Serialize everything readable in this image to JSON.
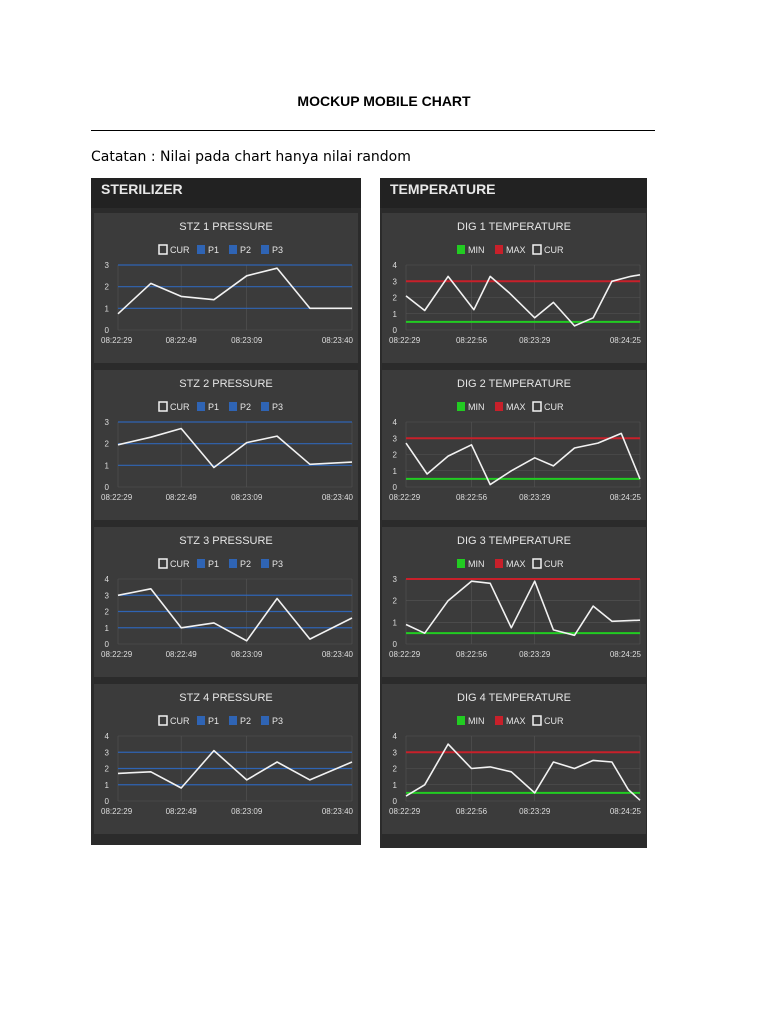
{
  "document": {
    "title": "MOCKUP MOBILE CHART",
    "note": "Catatan : Nilai pada chart hanya nilai random"
  },
  "colors": {
    "panel_bg": "#2b2b2b",
    "panel_header_bg": "#222222",
    "card_bg": "#3b3b3b",
    "cur_line": "#f2f2f2",
    "p_line": "#2f64b4",
    "min_line": "#22cc22",
    "max_line": "#c8202a",
    "grid": "#555555"
  },
  "panels": [
    {
      "title": "STERILIZER",
      "charts": [
        {
          "chart_data": {
            "type": "line",
            "title": "STZ 1 PRESSURE",
            "legend": [
              {
                "label": "CUR",
                "color": "#f2f2f2",
                "shape": "outline"
              },
              {
                "label": "P1",
                "color": "#2f64b4",
                "shape": "fill"
              },
              {
                "label": "P2",
                "color": "#2f64b4",
                "shape": "fill"
              },
              {
                "label": "P3",
                "color": "#2f64b4",
                "shape": "fill"
              }
            ],
            "y_ticks": [
              "0",
              "1",
              "2",
              "3"
            ],
            "ylim": [
              0,
              3
            ],
            "x_ticks": [
              "08:22:29",
              "08:22:49",
              "08:23:09",
              "08:23:40"
            ],
            "x_tick_pos": [
              0,
              0.27,
              0.55,
              1
            ],
            "thresholds": [
              {
                "name": "P1",
                "value": 1,
                "color": "#2f64b4"
              },
              {
                "name": "P2",
                "value": 2,
                "color": "#2f64b4"
              },
              {
                "name": "P3",
                "value": 3,
                "color": "#2f64b4"
              }
            ],
            "series": [
              {
                "name": "CUR",
                "color": "#f2f2f2",
                "x": [
                  0,
                  0.14,
                  0.27,
                  0.41,
                  0.55,
                  0.68,
                  0.82,
                  1
                ],
                "values": [
                  0.75,
                  2.15,
                  1.55,
                  1.4,
                  2.5,
                  2.85,
                  1.0,
                  1.0
                ]
              }
            ]
          }
        },
        {
          "chart_data": {
            "type": "line",
            "title": "STZ 2 PRESSURE",
            "legend": [
              {
                "label": "CUR",
                "color": "#f2f2f2",
                "shape": "outline"
              },
              {
                "label": "P1",
                "color": "#2f64b4",
                "shape": "fill"
              },
              {
                "label": "P2",
                "color": "#2f64b4",
                "shape": "fill"
              },
              {
                "label": "P3",
                "color": "#2f64b4",
                "shape": "fill"
              }
            ],
            "y_ticks": [
              "0",
              "1",
              "2",
              "3"
            ],
            "ylim": [
              0,
              3
            ],
            "x_ticks": [
              "08:22:29",
              "08:22:49",
              "08:23:09",
              "08:23:40"
            ],
            "x_tick_pos": [
              0,
              0.27,
              0.55,
              1
            ],
            "thresholds": [
              {
                "name": "P1",
                "value": 1,
                "color": "#2f64b4"
              },
              {
                "name": "P2",
                "value": 2,
                "color": "#2f64b4"
              },
              {
                "name": "P3",
                "value": 3,
                "color": "#2f64b4"
              }
            ],
            "series": [
              {
                "name": "CUR",
                "color": "#f2f2f2",
                "x": [
                  0,
                  0.14,
                  0.27,
                  0.41,
                  0.55,
                  0.68,
                  0.82,
                  1
                ],
                "values": [
                  1.95,
                  2.3,
                  2.7,
                  0.9,
                  2.05,
                  2.35,
                  1.05,
                  1.15
                ]
              }
            ]
          }
        },
        {
          "chart_data": {
            "type": "line",
            "title": "STZ 3 PRESSURE",
            "legend": [
              {
                "label": "CUR",
                "color": "#f2f2f2",
                "shape": "outline"
              },
              {
                "label": "P1",
                "color": "#2f64b4",
                "shape": "fill"
              },
              {
                "label": "P2",
                "color": "#2f64b4",
                "shape": "fill"
              },
              {
                "label": "P3",
                "color": "#2f64b4",
                "shape": "fill"
              }
            ],
            "y_ticks": [
              "0",
              "1",
              "2",
              "3",
              "4"
            ],
            "ylim": [
              0,
              4
            ],
            "x_ticks": [
              "08:22:29",
              "08:22:49",
              "08:23:09",
              "08:23:40"
            ],
            "x_tick_pos": [
              0,
              0.27,
              0.55,
              1
            ],
            "thresholds": [
              {
                "name": "P1",
                "value": 1,
                "color": "#2f64b4"
              },
              {
                "name": "P2",
                "value": 2,
                "color": "#2f64b4"
              },
              {
                "name": "P3",
                "value": 3,
                "color": "#2f64b4"
              }
            ],
            "series": [
              {
                "name": "CUR",
                "color": "#f2f2f2",
                "x": [
                  0,
                  0.14,
                  0.27,
                  0.41,
                  0.55,
                  0.68,
                  0.82,
                  1
                ],
                "values": [
                  3.0,
                  3.4,
                  1.0,
                  1.3,
                  0.2,
                  2.8,
                  0.3,
                  1.6
                ]
              }
            ]
          }
        },
        {
          "chart_data": {
            "type": "line",
            "title": "STZ 4 PRESSURE",
            "legend": [
              {
                "label": "CUR",
                "color": "#f2f2f2",
                "shape": "outline"
              },
              {
                "label": "P1",
                "color": "#2f64b4",
                "shape": "fill"
              },
              {
                "label": "P2",
                "color": "#2f64b4",
                "shape": "fill"
              },
              {
                "label": "P3",
                "color": "#2f64b4",
                "shape": "fill"
              }
            ],
            "y_ticks": [
              "0",
              "1",
              "2",
              "3",
              "4"
            ],
            "ylim": [
              0,
              4
            ],
            "x_ticks": [
              "08:22:29",
              "08:22:49",
              "08:23:09",
              "08:23:40"
            ],
            "x_tick_pos": [
              0,
              0.27,
              0.55,
              1
            ],
            "thresholds": [
              {
                "name": "P1",
                "value": 1,
                "color": "#2f64b4"
              },
              {
                "name": "P2",
                "value": 2,
                "color": "#2f64b4"
              },
              {
                "name": "P3",
                "value": 3,
                "color": "#2f64b4"
              }
            ],
            "series": [
              {
                "name": "CUR",
                "color": "#f2f2f2",
                "x": [
                  0,
                  0.14,
                  0.27,
                  0.41,
                  0.55,
                  0.68,
                  0.82,
                  1
                ],
                "values": [
                  1.7,
                  1.8,
                  0.8,
                  3.1,
                  1.3,
                  2.4,
                  1.3,
                  2.4
                ]
              }
            ]
          }
        }
      ]
    },
    {
      "title": "TEMPERATURE",
      "charts": [
        {
          "chart_data": {
            "type": "line",
            "title": "DIG 1 TEMPERATURE",
            "legend": [
              {
                "label": "MIN",
                "color": "#22cc22",
                "shape": "fill"
              },
              {
                "label": "MAX",
                "color": "#c8202a",
                "shape": "fill"
              },
              {
                "label": "CUR",
                "color": "#f2f2f2",
                "shape": "outline"
              }
            ],
            "y_ticks": [
              "0",
              "1",
              "2",
              "3",
              "4"
            ],
            "ylim": [
              0,
              4
            ],
            "x_ticks": [
              "08:22:29",
              "08:22:56",
              "08:23:29",
              "08:24:25"
            ],
            "x_tick_pos": [
              0,
              0.28,
              0.55,
              1
            ],
            "thresholds": [
              {
                "name": "MIN",
                "value": 0.5,
                "color": "#22cc22"
              },
              {
                "name": "MAX",
                "value": 3.0,
                "color": "#c8202a"
              }
            ],
            "series": [
              {
                "name": "CUR",
                "color": "#f2f2f2",
                "x": [
                  0,
                  0.08,
                  0.18,
                  0.29,
                  0.36,
                  0.44,
                  0.55,
                  0.63,
                  0.72,
                  0.8,
                  0.88,
                  0.96,
                  1
                ],
                "values": [
                  2.1,
                  1.2,
                  3.3,
                  1.25,
                  3.3,
                  2.3,
                  0.75,
                  1.7,
                  0.25,
                  0.75,
                  3.0,
                  3.3,
                  3.4
                ]
              }
            ]
          }
        },
        {
          "chart_data": {
            "type": "line",
            "title": "DIG 2 TEMPERATURE",
            "legend": [
              {
                "label": "MIN",
                "color": "#22cc22",
                "shape": "fill"
              },
              {
                "label": "MAX",
                "color": "#c8202a",
                "shape": "fill"
              },
              {
                "label": "CUR",
                "color": "#f2f2f2",
                "shape": "outline"
              }
            ],
            "y_ticks": [
              "0",
              "1",
              "2",
              "3",
              "4"
            ],
            "ylim": [
              0,
              4
            ],
            "x_ticks": [
              "08:22:29",
              "08:22:56",
              "08:23:29",
              "08:24:25"
            ],
            "x_tick_pos": [
              0,
              0.28,
              0.55,
              1
            ],
            "thresholds": [
              {
                "name": "MIN",
                "value": 0.5,
                "color": "#22cc22"
              },
              {
                "name": "MAX",
                "value": 3.0,
                "color": "#c8202a"
              }
            ],
            "series": [
              {
                "name": "CUR",
                "color": "#f2f2f2",
                "x": [
                  0,
                  0.09,
                  0.18,
                  0.28,
                  0.36,
                  0.45,
                  0.55,
                  0.63,
                  0.72,
                  0.82,
                  0.92,
                  1
                ],
                "values": [
                  2.7,
                  0.8,
                  1.9,
                  2.6,
                  0.15,
                  1.0,
                  1.8,
                  1.3,
                  2.4,
                  2.7,
                  3.3,
                  0.5
                ]
              }
            ]
          }
        },
        {
          "chart_data": {
            "type": "line",
            "title": "DIG 3 TEMPERATURE",
            "legend": [
              {
                "label": "MIN",
                "color": "#22cc22",
                "shape": "fill"
              },
              {
                "label": "MAX",
                "color": "#c8202a",
                "shape": "fill"
              },
              {
                "label": "CUR",
                "color": "#f2f2f2",
                "shape": "outline"
              }
            ],
            "y_ticks": [
              "0",
              "1",
              "2",
              "3"
            ],
            "ylim": [
              0,
              3
            ],
            "x_ticks": [
              "08:22:29",
              "08:22:56",
              "08:23:29",
              "08:24:25"
            ],
            "x_tick_pos": [
              0,
              0.28,
              0.55,
              1
            ],
            "thresholds": [
              {
                "name": "MIN",
                "value": 0.5,
                "color": "#22cc22"
              },
              {
                "name": "MAX",
                "value": 3.0,
                "color": "#c8202a"
              }
            ],
            "series": [
              {
                "name": "CUR",
                "color": "#f2f2f2",
                "x": [
                  0,
                  0.08,
                  0.18,
                  0.28,
                  0.36,
                  0.45,
                  0.55,
                  0.63,
                  0.72,
                  0.8,
                  0.88,
                  1
                ],
                "values": [
                  0.9,
                  0.5,
                  2.0,
                  2.9,
                  2.8,
                  0.75,
                  2.9,
                  0.65,
                  0.4,
                  1.75,
                  1.05,
                  1.1
                ]
              }
            ]
          }
        },
        {
          "chart_data": {
            "type": "line",
            "title": "DIG 4 TEMPERATURE",
            "legend": [
              {
                "label": "MIN",
                "color": "#22cc22",
                "shape": "fill"
              },
              {
                "label": "MAX",
                "color": "#c8202a",
                "shape": "fill"
              },
              {
                "label": "CUR",
                "color": "#f2f2f2",
                "shape": "outline"
              }
            ],
            "y_ticks": [
              "0",
              "1",
              "2",
              "3",
              "4"
            ],
            "ylim": [
              0,
              4
            ],
            "x_ticks": [
              "08:22:29",
              "08:22:56",
              "08:23:29",
              "08:24:25"
            ],
            "x_tick_pos": [
              0,
              0.28,
              0.55,
              1
            ],
            "thresholds": [
              {
                "name": "MIN",
                "value": 0.5,
                "color": "#22cc22"
              },
              {
                "name": "MAX",
                "value": 3.0,
                "color": "#c8202a"
              }
            ],
            "series": [
              {
                "name": "CUR",
                "color": "#f2f2f2",
                "x": [
                  0,
                  0.08,
                  0.18,
                  0.28,
                  0.36,
                  0.45,
                  0.55,
                  0.63,
                  0.72,
                  0.8,
                  0.88,
                  0.95,
                  1
                ],
                "values": [
                  0.3,
                  1.0,
                  3.5,
                  2.0,
                  2.1,
                  1.8,
                  0.5,
                  2.4,
                  2.0,
                  2.5,
                  2.4,
                  0.7,
                  0.05
                ]
              }
            ]
          }
        }
      ]
    }
  ]
}
